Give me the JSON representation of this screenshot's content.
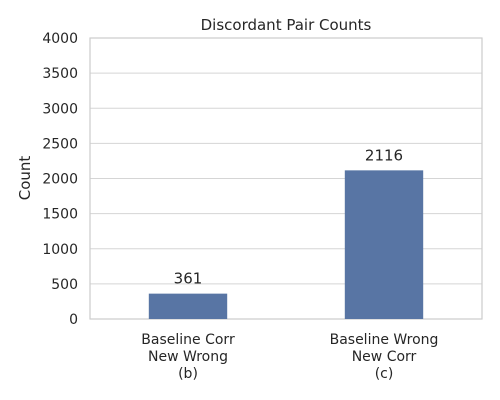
{
  "chart_data": {
    "type": "bar",
    "title": "Discordant Pair Counts",
    "ylabel": "Count",
    "categories": [
      "Baseline Corr\nNew Wrong\n(b)",
      "Baseline Wrong\nNew Corr\n(c)"
    ],
    "values": [
      361,
      2116
    ],
    "color": "#5875a4",
    "ylim": [
      0,
      4000
    ],
    "yticks": [
      0,
      500,
      1000,
      1500,
      2000,
      2500,
      3000,
      3500,
      4000
    ],
    "grid": true
  }
}
